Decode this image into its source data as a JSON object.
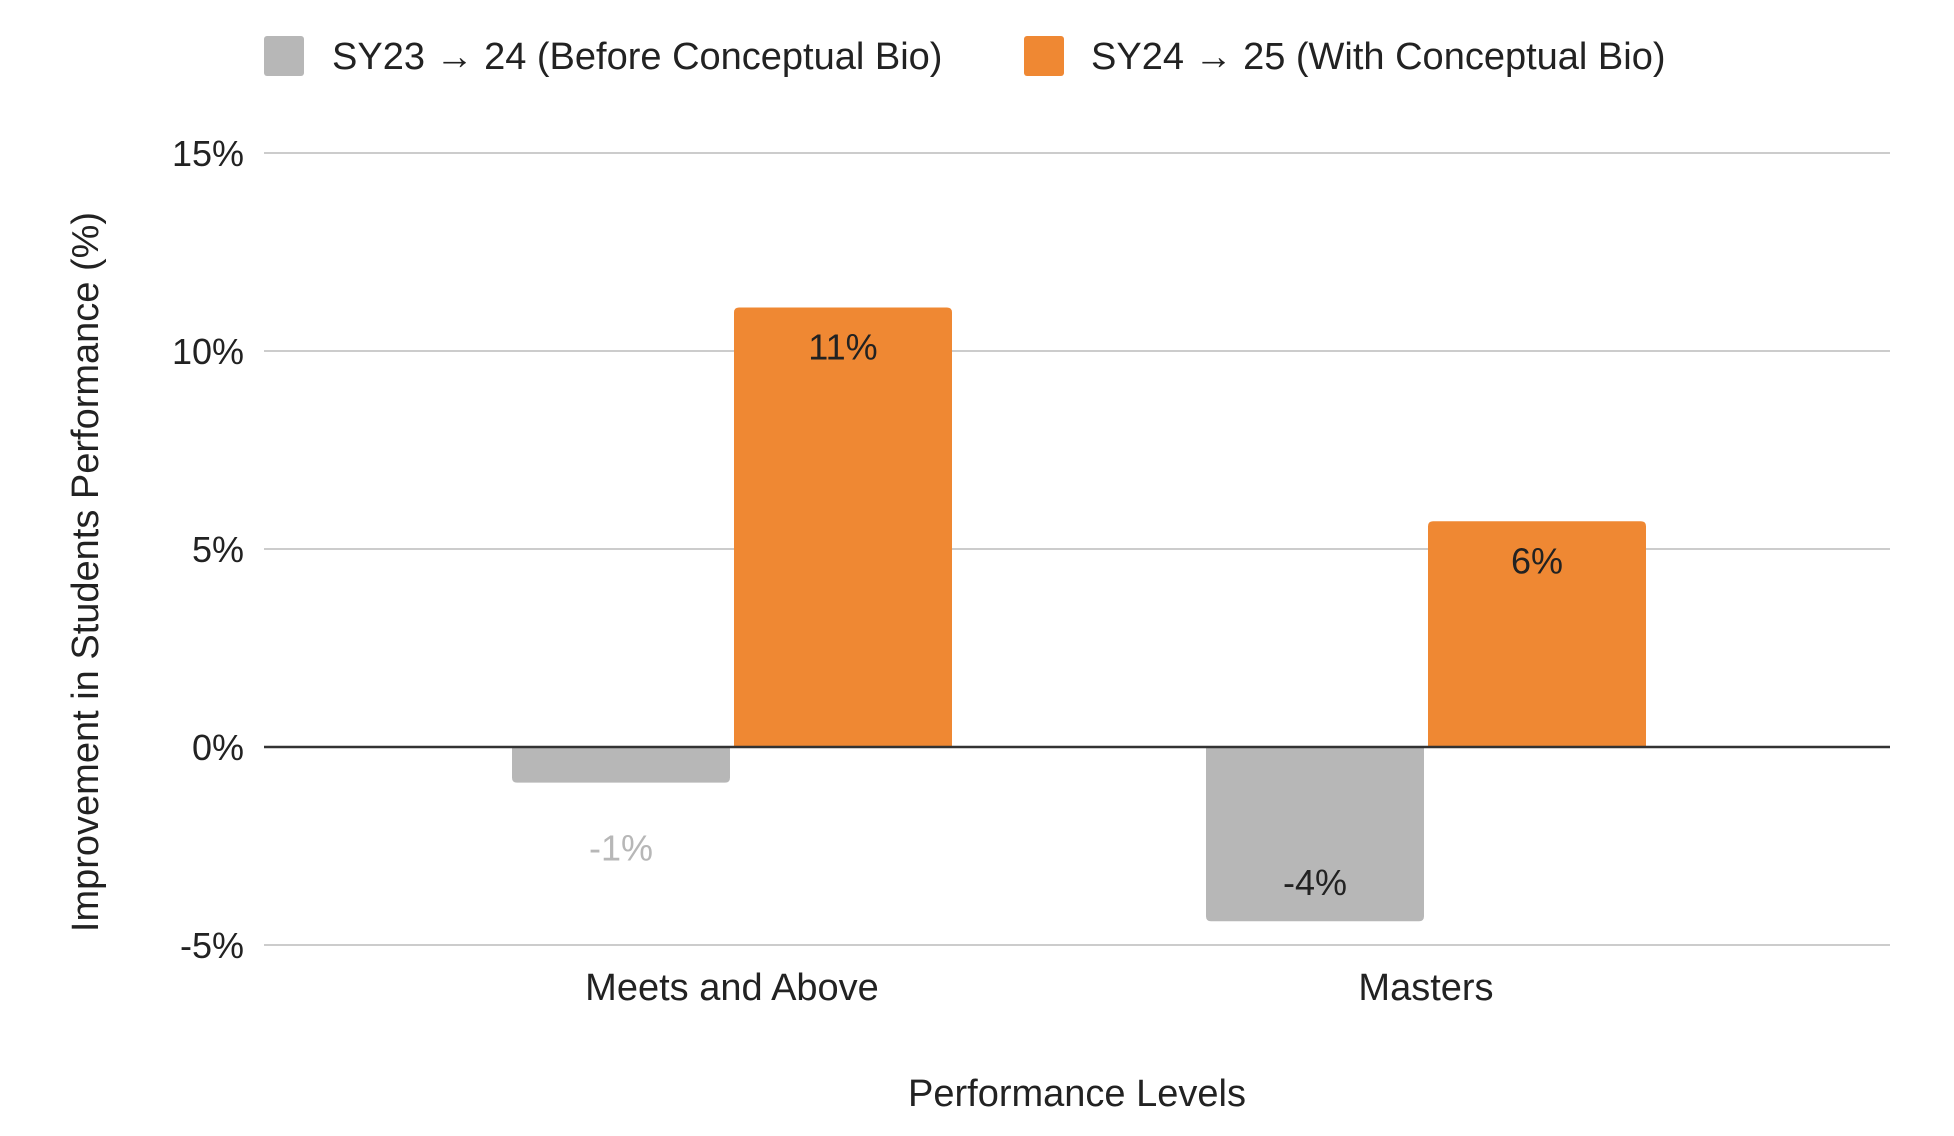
{
  "chart_data": {
    "type": "bar",
    "categories": [
      "Meets and Above",
      "Masters"
    ],
    "series": [
      {
        "name": "SY23 → 24 (Before Conceptual Bio)",
        "color": "#b7b7b7",
        "values": [
          -1,
          -4
        ],
        "value_precise": [
          -0.9,
          -4.4
        ],
        "labels": [
          "-1%",
          "-4%"
        ],
        "label_colors": [
          "#b7b7b7",
          "#222222"
        ]
      },
      {
        "name": "SY24 → 25 (With Conceptual Bio)",
        "color": "#ef8833",
        "values": [
          11,
          6
        ],
        "value_precise": [
          11.1,
          5.7
        ],
        "labels": [
          "11%",
          "6%"
        ],
        "label_colors": [
          "#222222",
          "#222222"
        ]
      }
    ],
    "title": "",
    "xlabel": "Performance Levels",
    "ylabel": "Improvement in Students Performance (%)",
    "ylim": [
      -5,
      15
    ],
    "yticks": [
      {
        "value": 15,
        "label": "15%"
      },
      {
        "value": 10,
        "label": "10%"
      },
      {
        "value": 5,
        "label": "5%"
      },
      {
        "value": 0,
        "label": "0%"
      },
      {
        "value": -5,
        "label": "-5%"
      }
    ],
    "grid": true,
    "legend_position": "top",
    "gridline_color": "#cccccc",
    "zero_line_color": "#333333"
  }
}
